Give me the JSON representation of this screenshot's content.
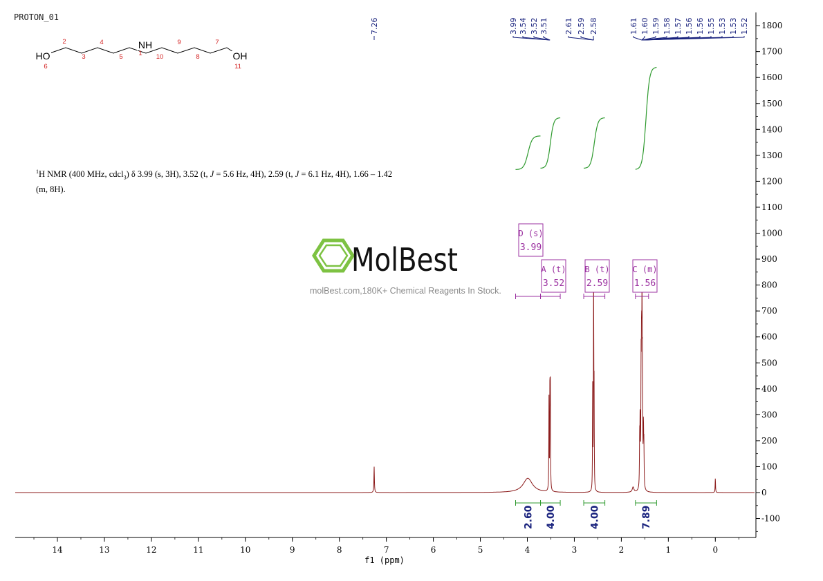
{
  "spectrum_label": "PROTON_01",
  "brand": {
    "name": "MolBest",
    "tagline": "molBest.com,180K+ Chemical Reagents In Stock.",
    "color": "#7dc242",
    "text_color": "#111111"
  },
  "nmr_summary": {
    "sup": "1",
    "line1_a": "H NMR (400 MHz, cdcl",
    "sub": "3",
    "line1_b": ") δ 3.99 (s, 3H), 3.52 (t, ",
    "j1": "J",
    "line1_c": " = 5.6 Hz, 4H), 2.59 (t, ",
    "j2": "J",
    "line1_d": " = 6.1 Hz, 4H), 1.66 – 1.42",
    "line2": "(m, 8H)."
  },
  "molecule": {
    "atoms": [
      {
        "symbol": "HO",
        "num": "6"
      },
      {
        "symbol": "",
        "num": "2"
      },
      {
        "symbol": "",
        "num": "3"
      },
      {
        "symbol": "",
        "num": "4"
      },
      {
        "symbol": "",
        "num": "5"
      },
      {
        "symbol": "NH",
        "num": "1"
      },
      {
        "symbol": "",
        "num": "10"
      },
      {
        "symbol": "",
        "num": "9"
      },
      {
        "symbol": "",
        "num": "8"
      },
      {
        "symbol": "",
        "num": "7"
      },
      {
        "symbol": "OH",
        "num": "11"
      }
    ]
  },
  "chart_data": {
    "type": "line",
    "xlabel": "f1 (ppm)",
    "x_reversed": true,
    "xlim": [
      15.0,
      -0.9
    ],
    "ylim": [
      -170,
      1840
    ],
    "x_ticks": [
      "14",
      "13",
      "12",
      "11",
      "10",
      "9",
      "8",
      "7",
      "6",
      "5",
      "4",
      "3",
      "2",
      "1",
      "0"
    ],
    "y_ticks": [
      "-100",
      "0",
      "100",
      "200",
      "300",
      "400",
      "500",
      "600",
      "700",
      "800",
      "900",
      "1000",
      "1100",
      "1200",
      "1300",
      "1400",
      "1500",
      "1600",
      "1700",
      "1800"
    ],
    "y_axis_side": "right",
    "colors": {
      "spectrum": "#8b1a1a",
      "integral": "#2e9a2e",
      "peak_label": "#1a237e",
      "multiplet": "#9b30a0"
    },
    "peaks": [
      {
        "ppm": 7.26,
        "height": 100,
        "width": 0.006
      },
      {
        "ppm": 3.99,
        "height": 55,
        "width": 0.12
      },
      {
        "ppm": 3.54,
        "height": 350,
        "width": 0.004
      },
      {
        "ppm": 3.52,
        "height": 440,
        "width": 0.004
      },
      {
        "ppm": 3.51,
        "height": 380,
        "width": 0.004
      },
      {
        "ppm": 2.61,
        "height": 400,
        "width": 0.004
      },
      {
        "ppm": 2.59,
        "height": 840,
        "width": 0.004
      },
      {
        "ppm": 2.58,
        "height": 350,
        "width": 0.004
      },
      {
        "ppm": 1.61,
        "height": 180,
        "width": 0.005
      },
      {
        "ppm": 1.6,
        "height": 240,
        "width": 0.005
      },
      {
        "ppm": 1.58,
        "height": 420,
        "width": 0.005
      },
      {
        "ppm": 1.57,
        "height": 480,
        "width": 0.005
      },
      {
        "ppm": 1.56,
        "height": 640,
        "width": 0.005
      },
      {
        "ppm": 1.55,
        "height": 420,
        "width": 0.005
      },
      {
        "ppm": 1.53,
        "height": 220,
        "width": 0.005
      },
      {
        "ppm": 1.52,
        "height": 150,
        "width": 0.005
      },
      {
        "ppm": 1.75,
        "height": 20,
        "width": 0.02
      },
      {
        "ppm": 0.0,
        "height": 55,
        "width": 0.005
      }
    ],
    "peak_labels_left": [
      "7.26"
    ],
    "peak_labels_groups": [
      {
        "labels": [
          "3.99",
          "3.54",
          "3.52",
          "3.51"
        ]
      },
      {
        "labels": [
          "2.61",
          "2.59",
          "2.58"
        ]
      },
      {
        "labels": [
          "1.61",
          "1.60",
          "1.59",
          "1.58",
          "1.57",
          "1.56",
          "1.56",
          "1.55",
          "1.53",
          "1.53",
          "1.52"
        ]
      }
    ],
    "multiplets": [
      {
        "letter": "D (s)",
        "shift": "3.99",
        "from": 4.25,
        "to": 3.72
      },
      {
        "letter": "A (t)",
        "shift": "3.52",
        "from": 3.72,
        "to": 3.3
      },
      {
        "letter": "B (t)",
        "shift": "2.59",
        "from": 2.8,
        "to": 2.35
      },
      {
        "letter": "C (m)",
        "shift": "1.56",
        "from": 1.7,
        "to": 1.42
      }
    ],
    "integrals": [
      {
        "value": "2.60",
        "from": 4.25,
        "to": 3.72,
        "y_start": 1245,
        "y_end": 1375
      },
      {
        "value": "4.00",
        "from": 3.72,
        "to": 3.3,
        "y_start": 1250,
        "y_end": 1445
      },
      {
        "value": "4.00",
        "from": 2.8,
        "to": 2.35,
        "y_start": 1250,
        "y_end": 1445
      },
      {
        "value": "7.89",
        "from": 1.7,
        "to": 1.25,
        "y_start": 1245,
        "y_end": 1640
      }
    ]
  }
}
